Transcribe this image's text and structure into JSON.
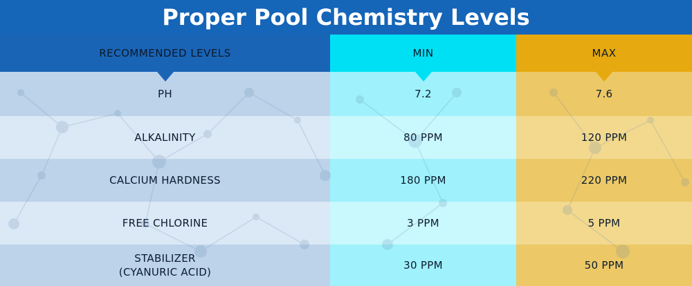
{
  "title": "Proper Pool Chemistry Levels",
  "columns": {
    "label": "RECOMMENDED LEVELS",
    "min": "MIN",
    "max": "MAX"
  },
  "rows": [
    {
      "label": "PH",
      "min": "7.2",
      "max": "7.6"
    },
    {
      "label": "ALKALINITY",
      "min": "80 PPM",
      "max": "120 PPM"
    },
    {
      "label": "CALCIUM HARDNESS",
      "min": "180 PPM",
      "max": "220 PPM"
    },
    {
      "label": "FREE CHLORINE",
      "min": "3 PPM",
      "max": "5 PPM"
    },
    {
      "label": "STABILIZER\n(CYANURIC ACID)",
      "min": "30 PPM",
      "max": "50 PPM"
    }
  ],
  "colors": {
    "title_bg": "#1565b8",
    "label_col": "#1a64b6",
    "min_col": "#00e0f5",
    "max_col": "#e6a90f"
  }
}
